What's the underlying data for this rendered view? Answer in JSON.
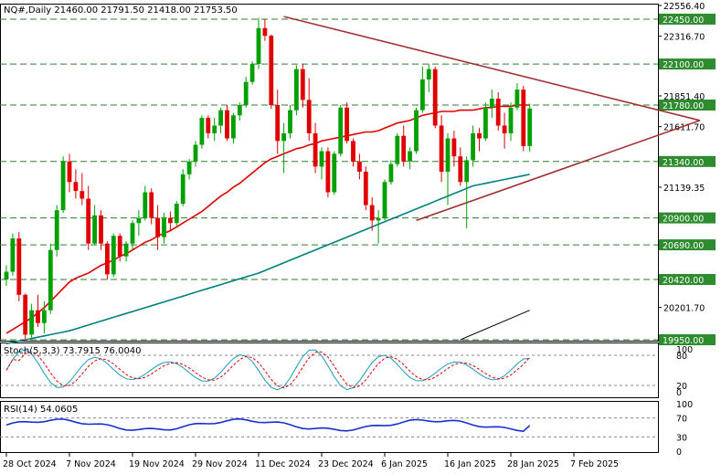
{
  "header": {
    "symbol_line": "NQ#,Daily  21460.00 21791.50 21418.00 21753.50"
  },
  "colors": {
    "up": "#00a000",
    "down": "#e00000",
    "ma_fast": "#e00000",
    "ma_slow": "#008080",
    "ma_long": "#000000",
    "trend": "#a03030",
    "level_line": "#2f7f2f",
    "level_label_bg": "#2e8b2e",
    "stoch_k": "#1a9bc0",
    "stoch_d": "#e00000",
    "rsi": "#1a2fd0"
  },
  "price_axis": {
    "min": 19950,
    "max": 22556.4,
    "ticks": [
      "22556.40",
      "22316.70",
      "21851.40",
      "21611.70",
      "21139.35",
      "20201.70"
    ],
    "tick_values": [
      22556.4,
      22316.7,
      21851.4,
      21611.7,
      21139.35,
      20201.7
    ],
    "levels": [
      {
        "value": 22450,
        "label": "22450.00"
      },
      {
        "value": 22100,
        "label": "22100.00"
      },
      {
        "value": 21780,
        "label": "21780.00"
      },
      {
        "value": 21340,
        "label": "21340.00"
      },
      {
        "value": 20900,
        "label": "20900.00"
      },
      {
        "value": 20690,
        "label": "20690.00"
      },
      {
        "value": 20420,
        "label": "20420.00"
      },
      {
        "value": 19950,
        "label": "19950.00"
      }
    ]
  },
  "x_axis": {
    "labels": [
      "28 Oct 2024",
      "7 Nov 2024",
      "19 Nov 2024",
      "29 Nov 2024",
      "11 Dec 2024",
      "23 Dec 2024",
      "6 Jan 2025",
      "16 Jan 2025",
      "28 Jan 2025",
      "7 Feb 2025"
    ],
    "label_bar_index": [
      0,
      10,
      20,
      30,
      40,
      50,
      60,
      70,
      80,
      90
    ]
  },
  "stoch": {
    "title": "Stoch(5,3,3) 73.7915 76.0040",
    "levels": [
      "80",
      "20"
    ],
    "max_label": "100",
    "min_label": "0"
  },
  "rsi": {
    "title": "RSI(14) 54.0605",
    "levels": [
      "100",
      "70",
      "30",
      "0"
    ]
  },
  "chart_data": {
    "type": "candlestick",
    "title": "NQ#,Daily",
    "last_bar": {
      "open": 21460.0,
      "high": 21791.5,
      "low": 21418.0,
      "close": 21753.5
    },
    "ylim": [
      19950,
      22556.4
    ],
    "trendlines": [
      {
        "name": "upper",
        "from": {
          "bar": 44,
          "price": 22470
        },
        "to": {
          "bar": 110,
          "price": 21660
        }
      },
      {
        "name": "lower",
        "from": {
          "bar": 65,
          "price": 20880
        },
        "to": {
          "bar": 110,
          "price": 21660
        }
      }
    ],
    "candles": [
      [
        20420,
        20530,
        20370,
        20480
      ],
      [
        20480,
        20780,
        20450,
        20740
      ],
      [
        20740,
        20790,
        20250,
        20300
      ],
      [
        20300,
        20310,
        19950,
        19990
      ],
      [
        19990,
        20230,
        19950,
        20180
      ],
      [
        20180,
        20300,
        20050,
        20080
      ],
      [
        20080,
        20250,
        20000,
        20180
      ],
      [
        20180,
        20700,
        20150,
        20650
      ],
      [
        20650,
        21000,
        20600,
        20960
      ],
      [
        20960,
        21380,
        20940,
        21340
      ],
      [
        21340,
        21400,
        21100,
        21180
      ],
      [
        21180,
        21280,
        21050,
        21110
      ],
      [
        21110,
        21250,
        21000,
        21050
      ],
      [
        21050,
        21150,
        20650,
        20700
      ],
      [
        20700,
        21000,
        20690,
        20920
      ],
      [
        20920,
        20960,
        20650,
        20700
      ],
      [
        20700,
        20720,
        20420,
        20460
      ],
      [
        20460,
        20780,
        20440,
        20760
      ],
      [
        20760,
        20780,
        20560,
        20600
      ],
      [
        20600,
        20720,
        20560,
        20700
      ],
      [
        20700,
        20880,
        20650,
        20860
      ],
      [
        20860,
        20960,
        20760,
        20900
      ],
      [
        20900,
        21150,
        20880,
        21100
      ],
      [
        21100,
        21130,
        20850,
        20900
      ],
      [
        20900,
        21000,
        20650,
        20750
      ],
      [
        20750,
        20940,
        20700,
        20900
      ],
      [
        20900,
        20950,
        20800,
        20860
      ],
      [
        20860,
        21030,
        20840,
        21010
      ],
      [
        21010,
        21280,
        20990,
        21240
      ],
      [
        21240,
        21360,
        21200,
        21340
      ],
      [
        21340,
        21500,
        21300,
        21470
      ],
      [
        21470,
        21700,
        21440,
        21680
      ],
      [
        21680,
        21700,
        21520,
        21560
      ],
      [
        21560,
        21680,
        21500,
        21620
      ],
      [
        21620,
        21760,
        21560,
        21740
      ],
      [
        21740,
        21780,
        21500,
        21520
      ],
      [
        21520,
        21720,
        21480,
        21700
      ],
      [
        21700,
        21800,
        21660,
        21780
      ],
      [
        21780,
        22000,
        21760,
        21960
      ],
      [
        21960,
        22120,
        21940,
        22100
      ],
      [
        22100,
        22460,
        22060,
        22380
      ],
      [
        22380,
        22450,
        22280,
        22320
      ],
      [
        22320,
        22330,
        21750,
        21780
      ],
      [
        21780,
        21900,
        21400,
        21500
      ],
      [
        21500,
        21640,
        21250,
        21560
      ],
      [
        21560,
        21780,
        21520,
        21740
      ],
      [
        21740,
        22090,
        21700,
        22060
      ],
      [
        22060,
        22100,
        21760,
        21820
      ],
      [
        21820,
        21990,
        21500,
        21560
      ],
      [
        21560,
        21640,
        21250,
        21300
      ],
      [
        21300,
        21450,
        21200,
        21420
      ],
      [
        21420,
        21450,
        21060,
        21100
      ],
      [
        21100,
        21420,
        21080,
        21400
      ],
      [
        21400,
        21780,
        21380,
        21760
      ],
      [
        21760,
        21800,
        21480,
        21500
      ],
      [
        21500,
        21520,
        21300,
        21340
      ],
      [
        21340,
        21400,
        21200,
        21260
      ],
      [
        21260,
        21300,
        20960,
        21000
      ],
      [
        21000,
        21060,
        20800,
        20880
      ],
      [
        20880,
        20960,
        20700,
        20900
      ],
      [
        20900,
        21200,
        20880,
        21180
      ],
      [
        21180,
        21350,
        21160,
        21320
      ],
      [
        21320,
        21560,
        21300,
        21540
      ],
      [
        21540,
        21620,
        21300,
        21340
      ],
      [
        21340,
        21450,
        21280,
        21420
      ],
      [
        21420,
        21760,
        21400,
        21740
      ],
      [
        21740,
        22080,
        21720,
        21980
      ],
      [
        21980,
        22100,
        21880,
        22060
      ],
      [
        22060,
        22080,
        21600,
        21620
      ],
      [
        21620,
        21700,
        21180,
        21260
      ],
      [
        21260,
        21560,
        21000,
        21520
      ],
      [
        21520,
        21580,
        21300,
        21380
      ],
      [
        21380,
        21450,
        21150,
        21180
      ],
      [
        21180,
        21380,
        20820,
        21350
      ],
      [
        21350,
        21620,
        21300,
        21560
      ],
      [
        21560,
        21600,
        21420,
        21520
      ],
      [
        21520,
        21800,
        21500,
        21760
      ],
      [
        21760,
        21900,
        21680,
        21830
      ],
      [
        21830,
        21880,
        21580,
        21620
      ],
      [
        21620,
        21720,
        21440,
        21560
      ],
      [
        21560,
        21800,
        21500,
        21760
      ],
      [
        21760,
        21950,
        21740,
        21900
      ],
      [
        21900,
        21930,
        21420,
        21460
      ],
      [
        21460,
        21791.5,
        21418,
        21753.5
      ]
    ],
    "ma_fast": [
      20000,
      20030,
      20060,
      20090,
      20120,
      20160,
      20200,
      20250,
      20300,
      20350,
      20400,
      20430,
      20450,
      20470,
      20500,
      20530,
      20550,
      20570,
      20600,
      20620,
      20650,
      20680,
      20710,
      20730,
      20760,
      20780,
      20800,
      20830,
      20860,
      20890,
      20920,
      20950,
      20990,
      21030,
      21070,
      21100,
      21140,
      21170,
      21210,
      21250,
      21290,
      21330,
      21360,
      21380,
      21400,
      21420,
      21440,
      21450,
      21470,
      21480,
      21500,
      21510,
      21520,
      21530,
      21540,
      21550,
      21560,
      21570,
      21570,
      21580,
      21600,
      21620,
      21640,
      21650,
      21660,
      21680,
      21700,
      21710,
      21720,
      21730,
      21730,
      21730,
      21740,
      21740,
      21740,
      21750,
      21760,
      21760,
      21770,
      21770,
      21770,
      21780,
      21780,
      21780
    ],
    "ma_slow": [
      19920,
      19930,
      19940,
      19950,
      19960,
      19970,
      19980,
      19990,
      20000,
      20010,
      20020,
      20035,
      20050,
      20065,
      20080,
      20095,
      20110,
      20125,
      20140,
      20155,
      20170,
      20185,
      20200,
      20215,
      20230,
      20245,
      20260,
      20275,
      20290,
      20305,
      20320,
      20335,
      20350,
      20365,
      20380,
      20395,
      20410,
      20425,
      20440,
      20455,
      20470,
      20490,
      20510,
      20530,
      20550,
      20570,
      20590,
      20610,
      20630,
      20650,
      20670,
      20690,
      20710,
      20730,
      20750,
      20770,
      20790,
      20810,
      20830,
      20850,
      20870,
      20890,
      20910,
      20930,
      20950,
      20970,
      20990,
      21010,
      21030,
      21050,
      21070,
      21090,
      21110,
      21130,
      21150,
      21160,
      21170,
      21180,
      21190,
      21200,
      21210,
      21220,
      21230,
      21240
    ]
  }
}
